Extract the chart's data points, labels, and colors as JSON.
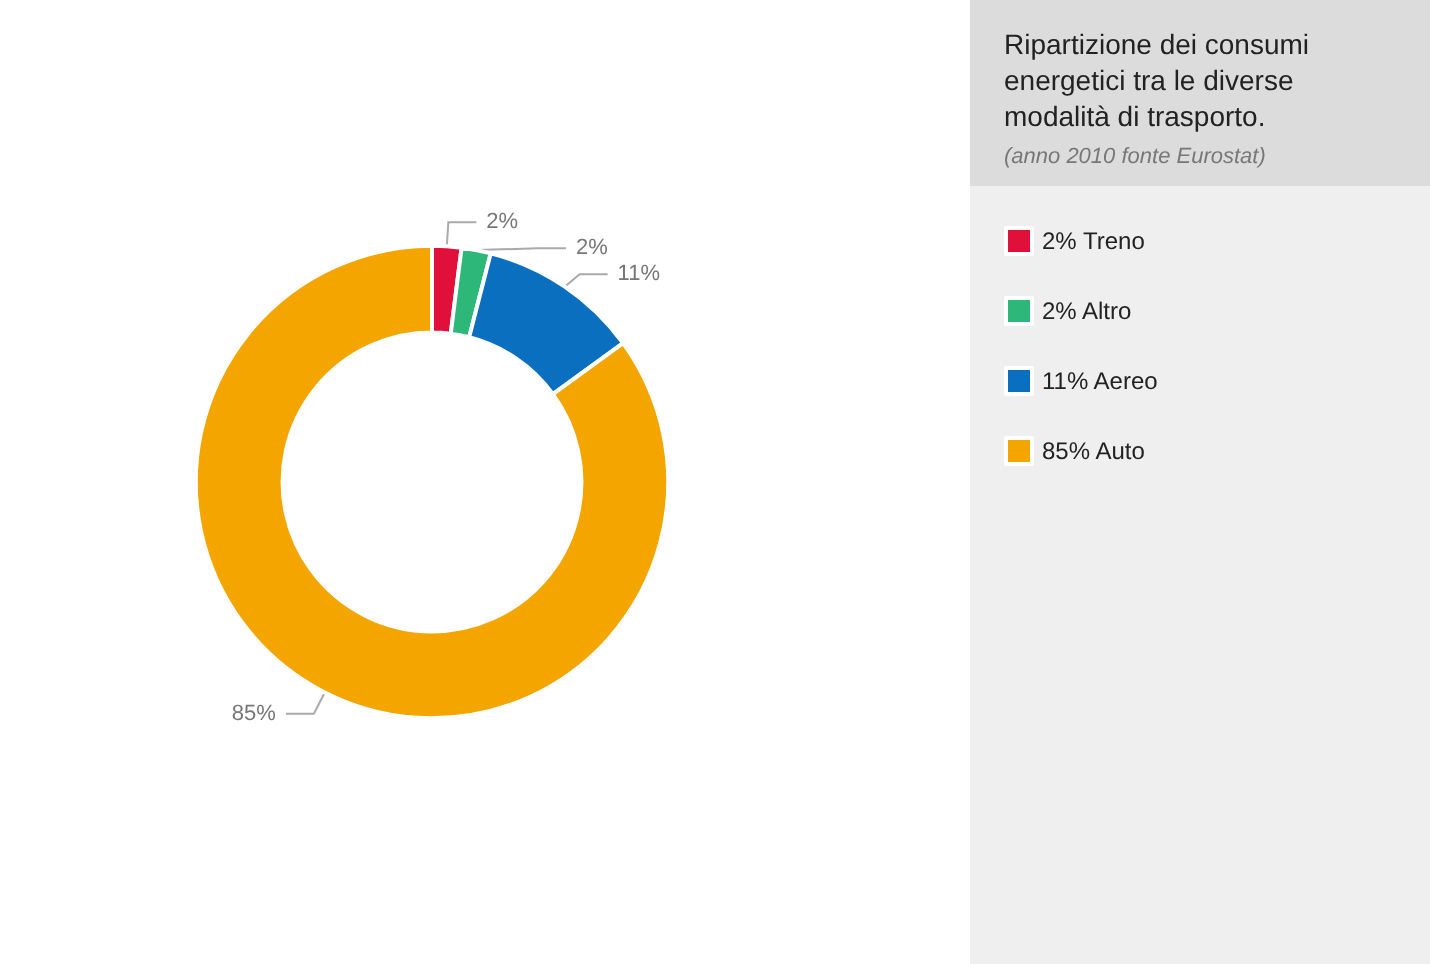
{
  "chart_data": {
    "type": "donut",
    "title": "Ripartizione dei consumi energetici tra le diverse modalità di trasporto.",
    "subtitle": "(anno 2010 fonte Eurostat)",
    "categories": [
      "Treno",
      "Altro",
      "Aereo",
      "Auto"
    ],
    "values": [
      2,
      2,
      11,
      85
    ],
    "value_labels": [
      "2%",
      "2%",
      "11%",
      "85%"
    ],
    "colors": [
      "#e0103a",
      "#2db87a",
      "#0a6fbf",
      "#f5a500"
    ],
    "legend": "right"
  }
}
